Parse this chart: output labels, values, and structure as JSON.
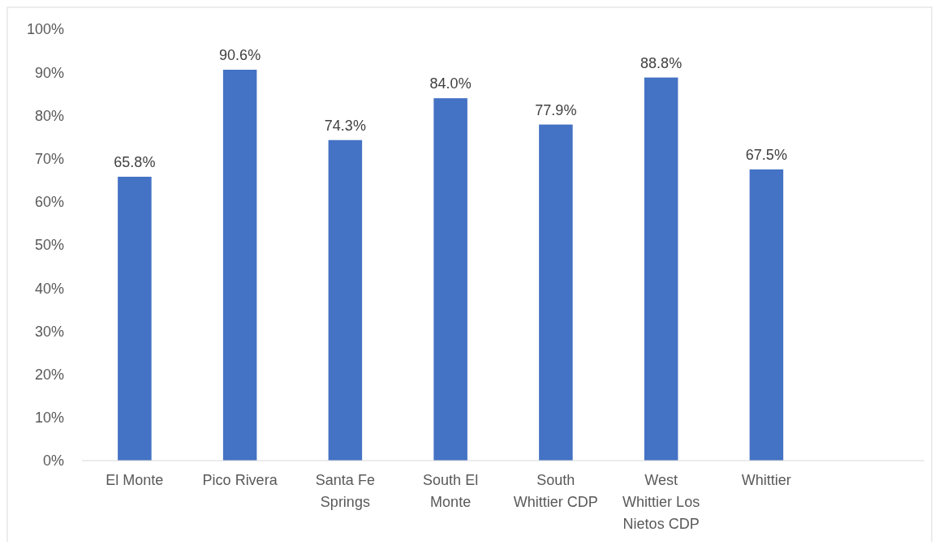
{
  "chart_data": {
    "type": "bar",
    "categories": [
      "El Monte",
      "Pico Rivera",
      "Santa Fe Springs",
      "South El Monte",
      "South Whittier CDP",
      "West Whittier Los Nietos CDP",
      "Whittier",
      null
    ],
    "values": [
      65.8,
      90.6,
      74.3,
      84.0,
      77.9,
      88.8,
      67.5,
      null
    ],
    "value_labels": [
      "65.8%",
      "90.6%",
      "74.3%",
      "84.0%",
      "77.9%",
      "88.8%",
      "67.5%",
      null
    ],
    "color": "#4472c4",
    "ylim": [
      0,
      100
    ],
    "yticks": [
      {
        "value": 0,
        "label": "0%"
      },
      {
        "value": 10,
        "label": "10%"
      },
      {
        "value": 20,
        "label": "20%"
      },
      {
        "value": 30,
        "label": "30%"
      },
      {
        "value": 40,
        "label": "40%"
      },
      {
        "value": 50,
        "label": "50%"
      },
      {
        "value": 60,
        "label": "60%"
      },
      {
        "value": 70,
        "label": "70%"
      },
      {
        "value": 80,
        "label": "80%"
      },
      {
        "value": 90,
        "label": "90%"
      },
      {
        "value": 100,
        "label": "100%"
      }
    ],
    "grid": false
  }
}
